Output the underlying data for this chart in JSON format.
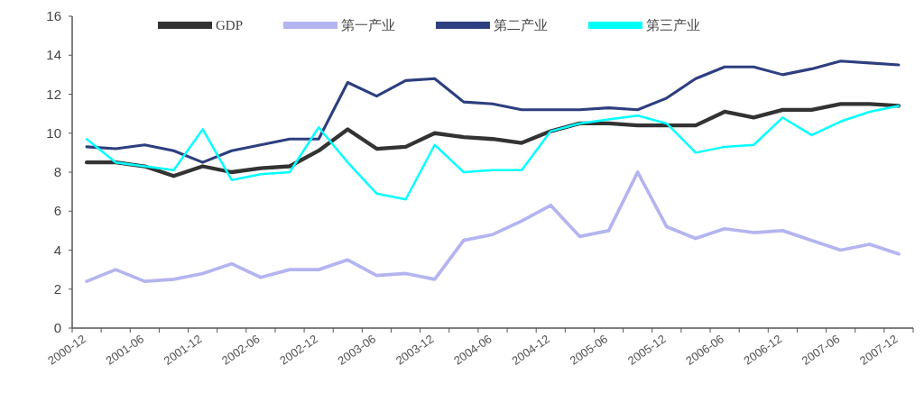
{
  "chart_data": {
    "type": "line",
    "categories": [
      "2000-12",
      null,
      "2001-06",
      null,
      "2001-12",
      null,
      "2002-06",
      null,
      "2002-12",
      null,
      "2003-06",
      null,
      "2003-12",
      null,
      "2004-06",
      null,
      "2004-12",
      null,
      "2005-06",
      null,
      "2005-12",
      null,
      "2006-06",
      null,
      "2006-12",
      null,
      "2007-06",
      null,
      "2007-12"
    ],
    "series": [
      {
        "name": "GDP",
        "color": "#333333",
        "values": [
          8.5,
          8.5,
          8.3,
          7.8,
          8.3,
          8.0,
          8.2,
          8.3,
          9.1,
          10.2,
          9.2,
          9.3,
          10.0,
          9.8,
          9.7,
          9.5,
          10.1,
          10.5,
          10.5,
          10.4,
          10.4,
          10.4,
          11.1,
          10.8,
          11.2,
          11.2,
          11.5,
          11.5,
          11.4
        ]
      },
      {
        "name": "第一产业",
        "color": "#b4b4f0",
        "values": [
          2.4,
          3.0,
          2.4,
          2.5,
          2.8,
          3.3,
          2.6,
          3.0,
          3.0,
          3.5,
          2.7,
          2.8,
          2.5,
          4.5,
          4.8,
          5.5,
          6.3,
          4.7,
          5.0,
          8.0,
          5.2,
          4.6,
          5.1,
          4.9,
          5.0,
          4.5,
          4.0,
          4.3,
          3.8
        ]
      },
      {
        "name": "第二产业",
        "color": "#2e3f80",
        "values": [
          9.3,
          9.2,
          9.4,
          9.1,
          8.5,
          9.1,
          9.4,
          9.7,
          9.7,
          12.6,
          11.9,
          12.7,
          12.8,
          11.6,
          11.5,
          11.2,
          11.2,
          11.2,
          11.3,
          11.2,
          11.8,
          12.8,
          13.4,
          13.4,
          13.0,
          13.3,
          13.7,
          13.6,
          13.5
        ]
      },
      {
        "name": "第三产业",
        "color": "#00ffff",
        "values": [
          9.7,
          8.5,
          8.3,
          8.1,
          10.2,
          7.6,
          7.9,
          8.0,
          10.3,
          8.5,
          6.9,
          6.6,
          9.4,
          8.0,
          8.1,
          8.1,
          10.1,
          10.5,
          10.7,
          10.9,
          10.5,
          9.0,
          9.3,
          9.4,
          10.8,
          9.9,
          10.6,
          11.1,
          11.4
        ]
      }
    ],
    "ylim": [
      0,
      16
    ],
    "yticks": [
      0,
      2,
      4,
      6,
      8,
      10,
      12,
      14,
      16
    ],
    "legend": "top",
    "grid": false
  }
}
